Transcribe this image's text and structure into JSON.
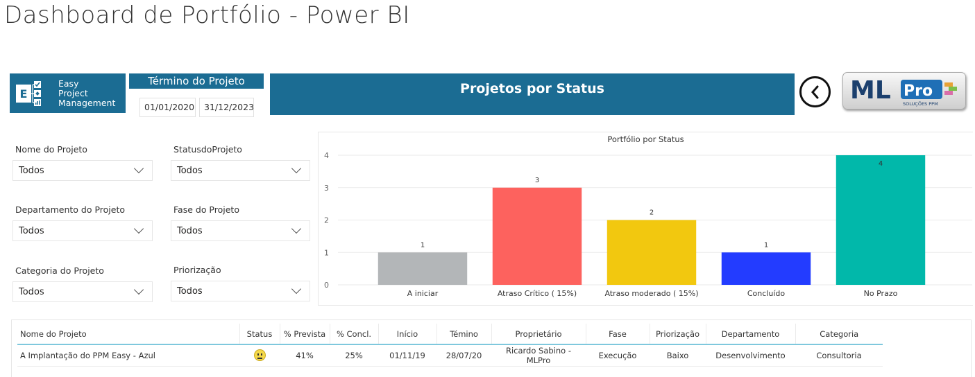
{
  "page": {
    "title": "Dashboard de Portfólio - Power BI"
  },
  "logo": {
    "line1": "Easy",
    "line2": "Project",
    "line3": "Management",
    "glyph": "E"
  },
  "date_slicer": {
    "label": "Término do Projeto",
    "start": "01/01/2020",
    "end": "31/12/2023"
  },
  "banner": {
    "title": "Projetos por Status"
  },
  "back_button": {
    "icon": "chevron-left-icon",
    "glyph": "‹"
  },
  "brand": {
    "name_ml": "ML",
    "name_pro": "Pro",
    "tagline": "SOLUÇÕES PPM",
    "color_ml": "#1b3f6d",
    "color_pro": "#1f6fb6"
  },
  "colors": {
    "accent": "#1b6c93",
    "table_rule": "#7fc8dd"
  },
  "slicers": [
    {
      "label": "Nome do Projeto",
      "value": "Todos"
    },
    {
      "label": "StatusdoProjeto",
      "value": "Todos"
    },
    {
      "label": "Departamento do Projeto",
      "value": "Todos"
    },
    {
      "label": "Fase do Projeto",
      "value": "Todos"
    },
    {
      "label": "Categoria do Projeto",
      "value": "Todos"
    },
    {
      "label": "Priorização",
      "value": "Todos"
    }
  ],
  "chart_data": {
    "type": "bar",
    "title": "Portfólio por Status",
    "categories": [
      "A iniciar",
      "Atraso Crítico ( 15%)",
      "Atraso moderado ( 15%)",
      "Concluído",
      "No Prazo"
    ],
    "values": [
      1,
      3,
      2,
      1,
      4
    ],
    "colors": [
      "#b3b6b8",
      "#fd625e",
      "#f2c80f",
      "#233cff",
      "#01b8aa"
    ],
    "yticks": [
      0,
      1,
      2,
      3,
      4
    ],
    "ylim": [
      0,
      4
    ],
    "grid": true,
    "xlabel": "",
    "ylabel": ""
  },
  "table": {
    "columns": [
      "Nome do Projeto",
      "Status",
      "% Prevista",
      "% Concl.",
      "Início",
      "Témino",
      "Proprietário",
      "Fase",
      "Priorização",
      "Departamento",
      "Categoria"
    ],
    "rows": [
      [
        "A Implantação do PPM Easy - Azul",
        "",
        "41%",
        "25%",
        "01/11/19",
        "28/07/20",
        "Ricardo Sabino - MLPro",
        "Execução",
        "Baixo",
        "Desenvolvimento",
        "Consultoria"
      ]
    ]
  }
}
